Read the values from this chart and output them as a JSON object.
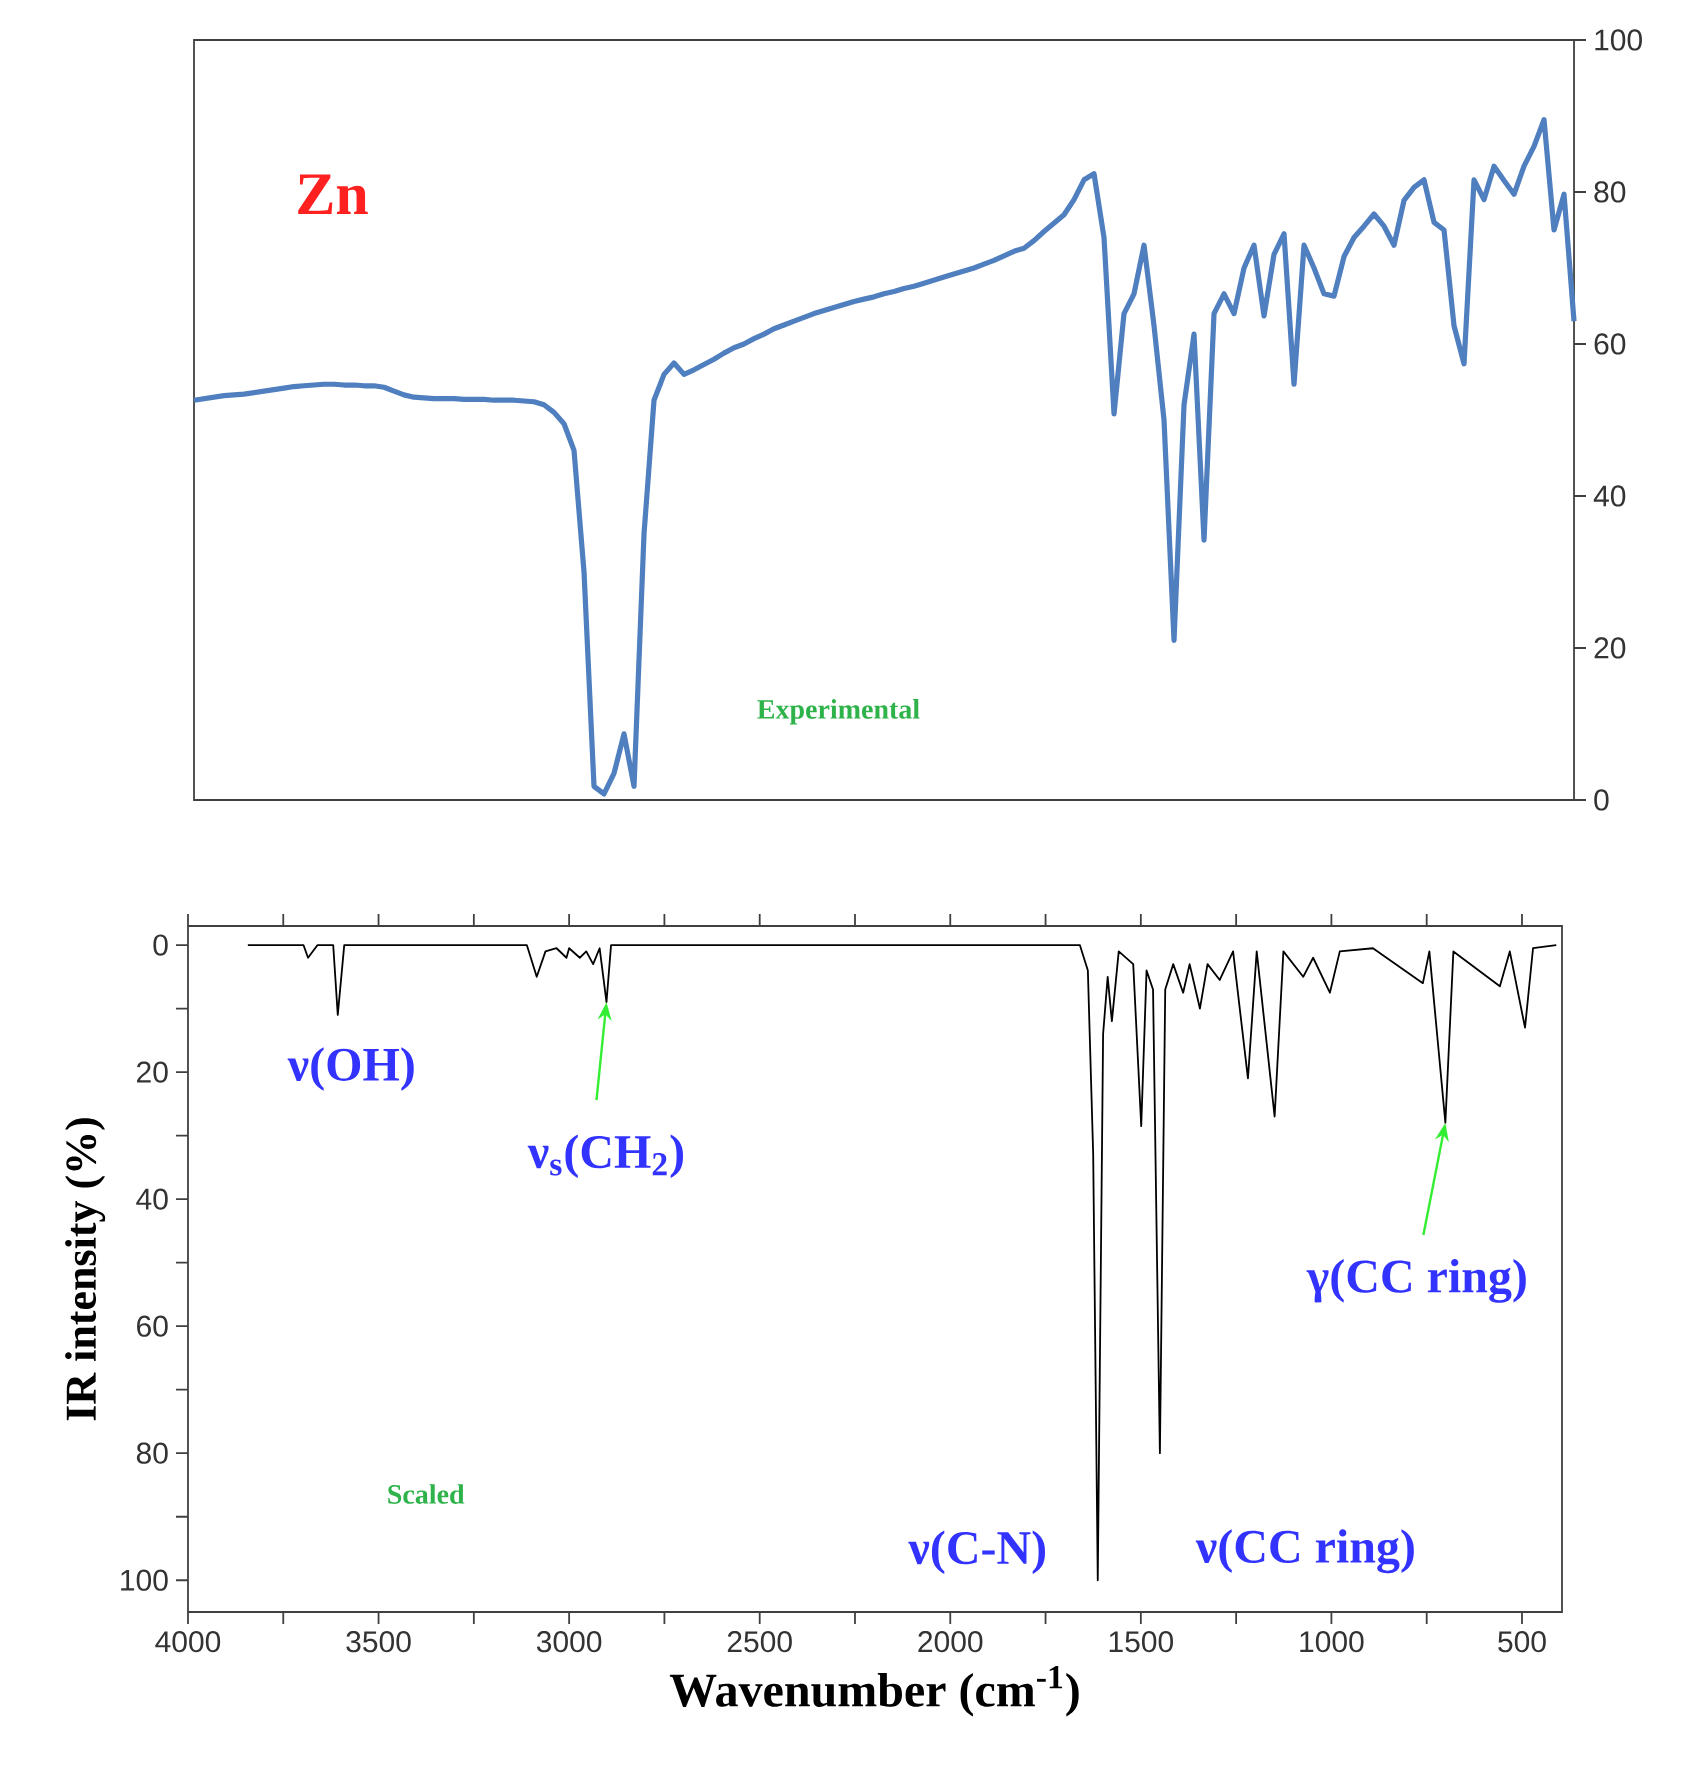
{
  "chart_data": [
    {
      "type": "line",
      "tick_labels": "y",
      "categories": [
        null,
        null,
        null,
        null,
        null,
        null,
        null,
        null,
        null,
        null,
        null,
        null,
        null,
        null,
        null,
        null,
        null,
        null,
        null,
        null,
        null,
        null,
        null,
        null,
        null,
        null,
        null,
        null,
        null,
        null,
        null,
        null,
        null,
        null,
        null,
        null,
        null,
        null,
        null,
        null,
        null,
        null,
        null,
        null,
        null,
        null,
        null,
        null,
        null,
        null,
        null,
        null,
        null,
        null,
        null,
        null,
        null,
        null,
        null,
        null,
        null,
        null,
        null,
        null,
        null,
        null,
        null,
        null,
        null,
        null,
        null,
        null,
        null,
        null,
        null,
        null,
        null,
        null,
        null,
        null,
        null,
        null,
        null,
        null,
        null,
        null,
        null,
        null,
        null,
        null,
        null,
        null,
        null,
        null,
        null,
        null,
        null,
        null,
        null,
        null,
        null,
        null,
        null,
        null,
        null,
        null,
        null,
        null,
        null,
        null,
        null,
        null,
        null,
        null,
        null,
        null,
        null,
        null,
        null,
        null,
        null,
        null,
        null,
        null,
        null,
        null,
        null,
        null,
        null,
        null,
        null,
        null,
        null,
        null,
        null,
        null,
        null,
        null,
        null
      ],
      "series": [
        {
          "color": "#4f7fbf",
          "values": [
            52.6,
            52.8,
            53,
            53.2,
            53.3,
            53.4,
            53.6,
            53.8,
            54,
            54.2,
            54.4,
            54.5,
            54.6,
            54.7,
            54.7,
            54.6,
            54.6,
            54.5,
            54.5,
            54.3,
            53.8,
            53.3,
            53,
            52.9,
            52.8,
            52.8,
            52.8,
            52.7,
            52.7,
            52.7,
            52.6,
            52.6,
            52.6,
            52.5,
            52.4,
            52,
            51,
            49.5,
            46,
            30,
            1.8,
            0.8,
            3.5,
            8.7,
            1.8,
            35,
            52.6,
            56,
            57.5,
            56,
            56.6,
            57.3,
            58,
            58.8,
            59.5,
            60,
            60.7,
            61.3,
            62,
            62.5,
            63,
            63.5,
            64,
            64.4,
            64.8,
            65.2,
            65.6,
            65.9,
            66.2,
            66.6,
            66.9,
            67.3,
            67.6,
            68,
            68.4,
            68.8,
            69.2,
            69.6,
            70,
            70.5,
            71,
            71.6,
            72.2,
            72.6,
            73.6,
            74.8,
            75.9,
            77,
            79,
            81.6,
            82.4,
            74,
            50.8,
            64,
            66.6,
            73,
            62.4,
            50,
            21,
            52,
            61.3,
            34.2,
            64,
            66.6,
            64,
            70,
            73,
            63.7,
            71.8,
            74.5,
            54.7,
            73,
            70,
            66.6,
            66.3,
            71.5,
            74,
            75.5,
            77.1,
            75.5,
            73,
            78.9,
            80.6,
            81.6,
            76,
            75,
            62.4,
            57.4,
            81.6,
            79,
            83.4,
            81.5,
            79.7,
            83.4,
            86,
            89.5,
            75,
            79.7,
            63
          ]
        }
      ],
      "ylim": [
        0,
        100
      ],
      "yticks": [
        0,
        20,
        40,
        60,
        80,
        100
      ],
      "annotations": [
        "Zn",
        "Experimental"
      ]
    },
    {
      "type": "line",
      "xlabel": "Wavenumber (cm$^{-1}$)",
      "ylabel": "IR intensity (%)",
      "x": [
        3843,
        3697,
        3685,
        3660,
        3619,
        3607,
        3590,
        3111,
        3085,
        3062,
        3033,
        3007,
        3000,
        2972,
        2955,
        2937,
        2920,
        2902,
        2890,
        1660,
        1639,
        1625,
        1613,
        1599,
        1587,
        1576,
        1558,
        1520,
        1499,
        1485,
        1468,
        1450,
        1436,
        1415,
        1389,
        1372,
        1345,
        1325,
        1293,
        1258,
        1219,
        1196,
        1149,
        1126,
        1074,
        1048,
        1004,
        978,
        891,
        760,
        743,
        701,
        680,
        558,
        532,
        492,
        471,
        410
      ],
      "series": [
        {
          "color": "#000000",
          "values": [
            0,
            0,
            2,
            0,
            0,
            11,
            0,
            0,
            5,
            1,
            0.5,
            2,
            0.5,
            2,
            1,
            3,
            0.5,
            9,
            0,
            0,
            4,
            33,
            100,
            14,
            5,
            12,
            1,
            3,
            28.5,
            4,
            7,
            80,
            7,
            3,
            7.5,
            3,
            10,
            3,
            5.5,
            1,
            21,
            1,
            27,
            1,
            5,
            2,
            7.5,
            1,
            0.5,
            6,
            1,
            28,
            1,
            6.5,
            1,
            13,
            0.5,
            0
          ]
        }
      ],
      "xlim": [
        4000,
        395
      ],
      "xticks": [
        4000,
        {
          "value": 3750,
          "label": null
        },
        3500,
        {
          "value": 3250,
          "label": null
        },
        3000,
        {
          "value": 2750,
          "label": null
        },
        2500,
        {
          "value": 2250,
          "label": null
        },
        2000,
        {
          "value": 1750,
          "label": null
        },
        1500,
        {
          "value": 1250,
          "label": null
        },
        1000,
        {
          "value": 750,
          "label": null
        },
        500
      ],
      "ylim": [
        105,
        -3
      ],
      "yticks": [
        0,
        {
          "value": 10,
          "label": null
        },
        20,
        {
          "value": 30,
          "label": null
        },
        40,
        {
          "value": 50,
          "label": null
        },
        60,
        {
          "value": 70,
          "label": null
        },
        80,
        {
          "value": 90,
          "label": null
        },
        100
      ],
      "annotations": [
        {
          "text": "ν(OH)",
          "x": 3607,
          "y": 11
        },
        {
          "text": "ν$_{s}$(CH$_{2}$)",
          "x": 2902,
          "y": 9
        },
        {
          "text": "γ(CC ring)",
          "x": 701,
          "y": 28
        },
        {
          "text": "ν(C-N)",
          "x": 1613,
          "y": 100
        },
        {
          "text": "ν(CC ring)",
          "x": 1450,
          "y": 80
        },
        "Scaled"
      ]
    }
  ]
}
